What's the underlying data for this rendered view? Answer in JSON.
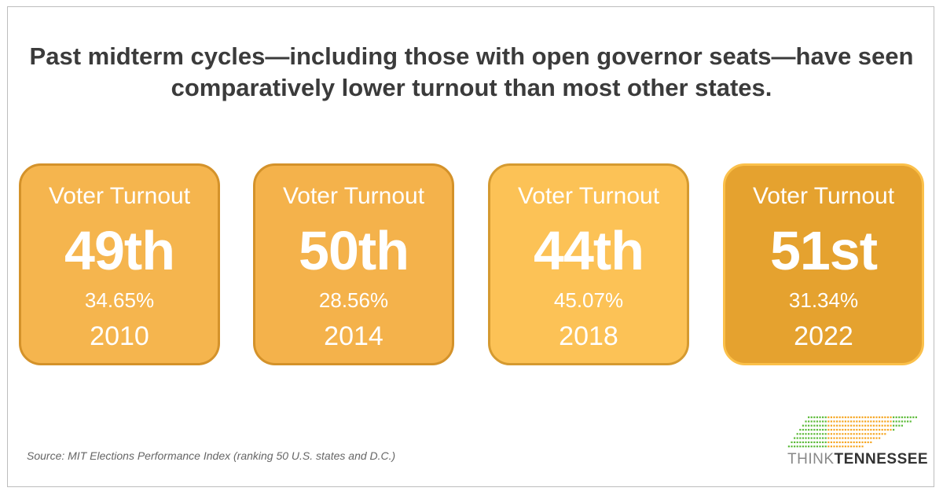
{
  "headline": "Past midterm cycles—including those with open governor seats—have seen comparatively lower turnout than most other states.",
  "cards": [
    {
      "label": "Voter Turnout",
      "rank": "49th",
      "percent": "34.65%",
      "year": "2010",
      "fill": "#F5B54E",
      "border": "#D4922A"
    },
    {
      "label": "Voter Turnout",
      "rank": "50th",
      "percent": "28.56%",
      "year": "2014",
      "fill": "#F4B24B",
      "border": "#D4922A"
    },
    {
      "label": "Voter Turnout",
      "rank": "44th",
      "percent": "45.07%",
      "year": "2018",
      "fill": "#FCC256",
      "border": "#D59A30"
    },
    {
      "label": "Voter Turnout",
      "rank": "51st",
      "percent": "31.34%",
      "year": "2022",
      "fill": "#E5A22F",
      "border": "#FBC04A"
    }
  ],
  "source": "Source: MIT Elections Performance Index (ranking 50 U.S. states and D.C.)",
  "logo": {
    "part1": "THINK",
    "part2": "TENNESSEE",
    "green": "#5DBB3A",
    "orange": "#F5A623"
  }
}
